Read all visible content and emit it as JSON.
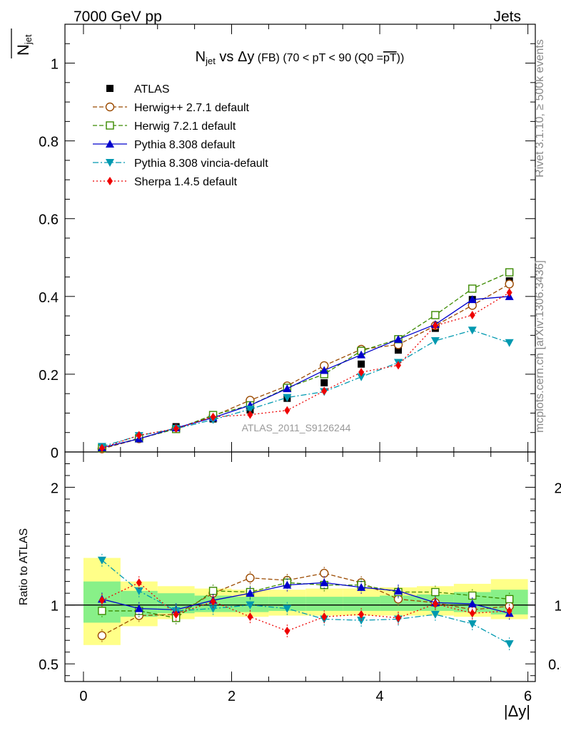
{
  "chart_data": {
    "type": "line",
    "header_left": "7000 GeV pp",
    "header_right": "Jets",
    "title_main": "N",
    "title_sub": "jet",
    "title_vs": " vs ",
    "title_dy": "Δy",
    "title_rest": " (FB) (70 < pT <  90 (Q0 =",
    "title_pt": "pT",
    "title_close": "))",
    "ylabel_main": "N",
    "ylabel_sub": "jet",
    "ratio_ylabel": "Ratio to ATLAS",
    "xlabel": "|Δy|",
    "watermark": "ATLAS_2011_S9126244",
    "side_label_top": "Rivet 3.1.10, ≥ 500k events",
    "side_label_bottom": "mcplots.cern.ch [arXiv:1306.3436]",
    "xlim": [
      -0.25,
      6.1
    ],
    "ylim": [
      0,
      1.1
    ],
    "ratio_ylim": [
      0.35,
      2.3
    ],
    "xticks": [
      "0",
      "2",
      "4",
      "6"
    ],
    "yticks": [
      "0",
      "0.2",
      "0.4",
      "0.6",
      "0.8",
      "1"
    ],
    "ratio_yticks": [
      "0.5",
      "1",
      "2"
    ],
    "x": [
      0.25,
      0.75,
      1.25,
      1.75,
      2.25,
      2.75,
      3.25,
      3.75,
      4.25,
      4.75,
      5.25,
      5.75
    ],
    "bin_edges": [
      0,
      0.5,
      1.0,
      1.5,
      2.0,
      2.5,
      3.0,
      3.5,
      4.0,
      4.5,
      5.0,
      5.5,
      6.0
    ],
    "band_yellow": [
      [
        0.66,
        1.4
      ],
      [
        0.82,
        1.2
      ],
      [
        0.88,
        1.16
      ],
      [
        0.9,
        1.14
      ],
      [
        0.9,
        1.13
      ],
      [
        0.91,
        1.13
      ],
      [
        0.91,
        1.14
      ],
      [
        0.91,
        1.14
      ],
      [
        0.91,
        1.15
      ],
      [
        0.91,
        1.16
      ],
      [
        0.9,
        1.18
      ],
      [
        0.88,
        1.22
      ]
    ],
    "band_green": [
      [
        0.85,
        1.2
      ],
      [
        0.9,
        1.12
      ],
      [
        0.93,
        1.1
      ],
      [
        0.94,
        1.08
      ],
      [
        0.94,
        1.07
      ],
      [
        0.95,
        1.07
      ],
      [
        0.95,
        1.07
      ],
      [
        0.95,
        1.07
      ],
      [
        0.95,
        1.08
      ],
      [
        0.95,
        1.09
      ],
      [
        0.94,
        1.11
      ],
      [
        0.92,
        1.13
      ]
    ],
    "series": [
      {
        "name": "ATLAS",
        "color": "#000000",
        "marker": "square",
        "dash": "",
        "values": [
          0.011,
          0.037,
          0.065,
          0.085,
          0.108,
          0.138,
          0.178,
          0.226,
          0.262,
          0.318,
          0.392,
          0.44
        ],
        "ratio": [
          1,
          1,
          1,
          1,
          1,
          1,
          1,
          1,
          1,
          1,
          1,
          1
        ]
      },
      {
        "name": "Herwig++ 2.7.1 default",
        "color": "#9b4a00",
        "marker": "circle-open",
        "dash": "6,3",
        "values": [
          0.008,
          0.034,
          0.06,
          0.092,
          0.133,
          0.17,
          0.222,
          0.264,
          0.276,
          0.325,
          0.377,
          0.432
        ],
        "ratio": [
          0.74,
          0.91,
          0.92,
          1.1,
          1.23,
          1.21,
          1.27,
          1.19,
          1.05,
          1.02,
          0.96,
          0.99
        ]
      },
      {
        "name": "Herwig 7.2.1 default",
        "color": "#3b8a00",
        "marker": "square-open",
        "dash": "6,3",
        "values": [
          0.01,
          0.035,
          0.059,
          0.095,
          0.12,
          0.165,
          0.2,
          0.26,
          0.29,
          0.352,
          0.42,
          0.462
        ],
        "ratio": [
          0.95,
          0.95,
          0.89,
          1.12,
          1.11,
          1.19,
          1.17,
          1.17,
          1.11,
          1.11,
          1.08,
          1.05
        ]
      },
      {
        "name": "Pythia 8.308 default",
        "color": "#0000cc",
        "marker": "triangle-up",
        "dash": "",
        "values": [
          0.011,
          0.034,
          0.062,
          0.088,
          0.12,
          0.163,
          0.21,
          0.25,
          0.29,
          0.328,
          0.392,
          0.4
        ],
        "ratio": [
          1.05,
          0.97,
          0.96,
          1.04,
          1.1,
          1.17,
          1.19,
          1.15,
          1.12,
          1.02,
          1.01,
          0.93
        ]
      },
      {
        "name": "Pythia 8.308 vincia-default",
        "color": "#0099b0",
        "marker": "triangle-down",
        "dash": "8,3,2,3",
        "values": [
          0.014,
          0.042,
          0.06,
          0.083,
          0.11,
          0.14,
          0.155,
          0.193,
          0.23,
          0.286,
          0.313,
          0.281
        ],
        "ratio": [
          1.38,
          1.12,
          0.95,
          0.97,
          1.0,
          0.97,
          0.88,
          0.87,
          0.88,
          0.92,
          0.84,
          0.67
        ]
      },
      {
        "name": "Sherpa 1.4.5 default",
        "color": "#ee0000",
        "marker": "diamond",
        "dash": "2,3",
        "values": [
          0.01,
          0.043,
          0.06,
          0.09,
          0.096,
          0.107,
          0.157,
          0.205,
          0.223,
          0.325,
          0.352,
          0.41
        ],
        "ratio": [
          1.04,
          1.19,
          0.92,
          1.03,
          0.9,
          0.78,
          0.9,
          0.92,
          0.89,
          1.01,
          0.93,
          0.95
        ]
      }
    ]
  }
}
